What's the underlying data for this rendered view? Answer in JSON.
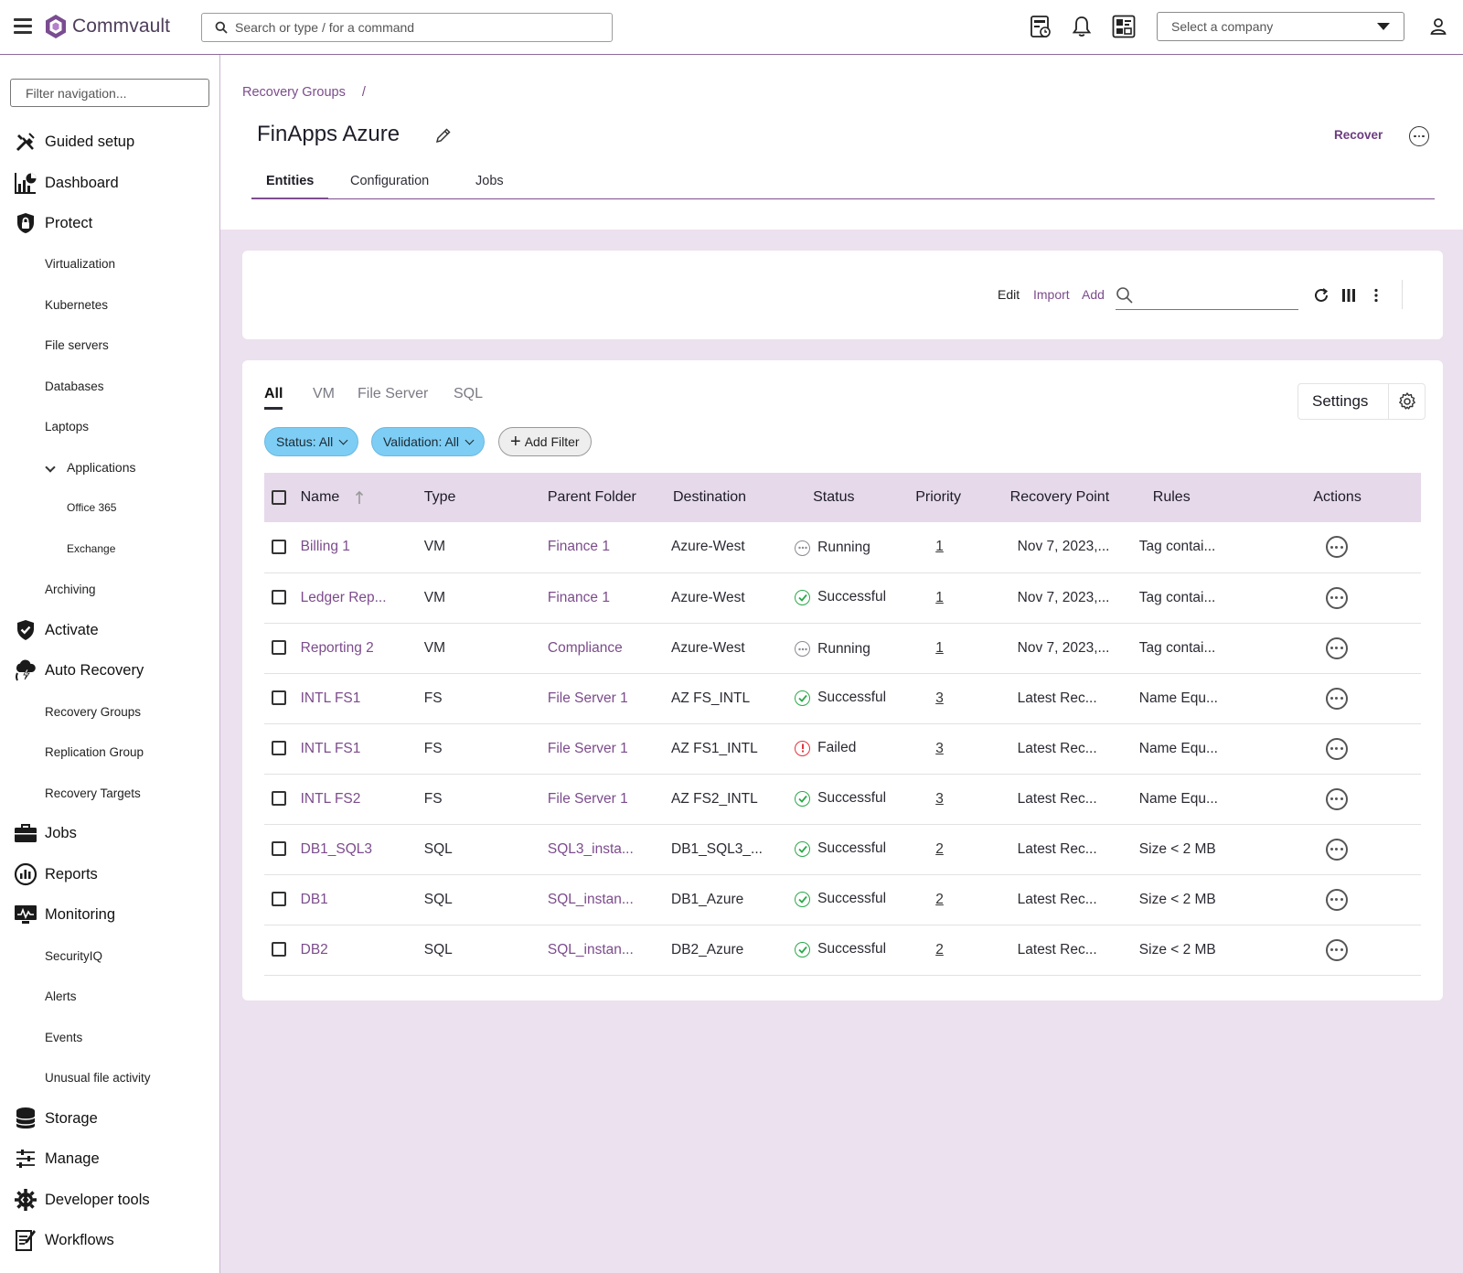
{
  "header": {
    "logo_text": "Commvault",
    "search_placeholder": "Search or type / for a command",
    "company_select": "Select a company",
    "icons": [
      "hamburger-menu-icon",
      "commvault-logo-icon",
      "search-icon",
      "job-monitor-icon",
      "bell-icon",
      "dashboard-widget-icon",
      "chevron-down-icon",
      "user-icon"
    ]
  },
  "sidebar": {
    "filter_placeholder": "Filter navigation...",
    "items": [
      {
        "label": "Guided setup",
        "icon": "tools-icon",
        "level": 0
      },
      {
        "label": "Dashboard",
        "icon": "chart-icon",
        "level": 0
      },
      {
        "label": "Protect",
        "icon": "lock-shield-icon",
        "level": 0
      },
      {
        "label": "Virtualization",
        "level": 1
      },
      {
        "label": "Kubernetes",
        "level": 1
      },
      {
        "label": "File servers",
        "level": 1
      },
      {
        "label": "Databases",
        "level": 1
      },
      {
        "label": "Laptops",
        "level": 1
      },
      {
        "label": "Applications",
        "level": 1,
        "expanded": true
      },
      {
        "label": "Office 365",
        "level": 2
      },
      {
        "label": "Exchange",
        "level": 2
      },
      {
        "label": "Archiving",
        "level": 1
      },
      {
        "label": "Activate",
        "icon": "shield-check-icon",
        "level": 0
      },
      {
        "label": "Auto Recovery",
        "icon": "cloud-recovery-icon",
        "level": 0
      },
      {
        "label": "Recovery Groups",
        "level": 1
      },
      {
        "label": "Replication Group",
        "level": 1
      },
      {
        "label": "Recovery Targets",
        "level": 1
      },
      {
        "label": "Jobs",
        "icon": "briefcase-icon",
        "level": 0
      },
      {
        "label": "Reports",
        "icon": "reports-icon",
        "level": 0
      },
      {
        "label": "Monitoring",
        "icon": "monitor-icon",
        "level": 0
      },
      {
        "label": "SecurityIQ",
        "level": 1
      },
      {
        "label": "Alerts",
        "level": 1
      },
      {
        "label": "Events",
        "level": 1
      },
      {
        "label": "Unusual file activity",
        "level": 1
      },
      {
        "label": "Storage",
        "icon": "database-icon",
        "level": 0
      },
      {
        "label": "Manage",
        "icon": "sliders-icon",
        "level": 0
      },
      {
        "label": "Developer tools",
        "icon": "gear-code-icon",
        "level": 0
      },
      {
        "label": "Workflows",
        "icon": "workflow-icon",
        "level": 0
      }
    ]
  },
  "page": {
    "breadcrumb": "Recovery Groups",
    "breadcrumb_sep": "/",
    "title": "FinApps Azure",
    "recover_label": "Recover",
    "tabs": [
      "Entities",
      "Configuration",
      "Jobs"
    ],
    "active_tab": "Entities"
  },
  "toolbar": {
    "edit": "Edit",
    "import": "Import",
    "add": "Add",
    "search_value": ""
  },
  "table_card": {
    "filter_tabs": [
      "All",
      "VM",
      "File Server",
      "SQL"
    ],
    "active_filter_tab": "All",
    "settings_label": "Settings",
    "chips": {
      "status": "Status: All",
      "validation": "Validation: All",
      "add_filter": "Add Filter"
    },
    "columns": [
      "Name",
      "Type",
      "Parent Folder",
      "Destination",
      "Status",
      "Priority",
      "Recovery Point",
      "Rules",
      "Actions"
    ],
    "sort_column": "Name",
    "status_colors": {
      "Running": "#8a8a93",
      "Successful": "#2ba84a",
      "Failed": "#e0333c"
    },
    "rows": [
      {
        "name": "Billing 1",
        "type": "VM",
        "parent": "Finance 1",
        "destination": "Azure-West",
        "status": "Running",
        "priority": "1",
        "recovery_point": "Nov 7, 2023,...",
        "rules": "Tag contai..."
      },
      {
        "name": "Ledger Rep...",
        "type": "VM",
        "parent": "Finance 1",
        "destination": "Azure-West",
        "status": "Successful",
        "priority": "1",
        "recovery_point": "Nov 7, 2023,...",
        "rules": "Tag contai..."
      },
      {
        "name": "Reporting 2",
        "type": "VM",
        "parent": "Compliance",
        "destination": "Azure-West",
        "status": "Running",
        "priority": "1",
        "recovery_point": "Nov 7, 2023,...",
        "rules": "Tag contai..."
      },
      {
        "name": "INTL FS1",
        "type": "FS",
        "parent": "File Server 1",
        "destination": "AZ FS_INTL",
        "status": "Successful",
        "priority": "3",
        "recovery_point": "Latest Rec...",
        "rules": "Name Equ..."
      },
      {
        "name": "INTL FS1",
        "type": "FS",
        "parent": "File Server 1",
        "destination": "AZ FS1_INTL",
        "status": "Failed",
        "priority": "3",
        "recovery_point": "Latest Rec...",
        "rules": "Name Equ..."
      },
      {
        "name": "INTL FS2",
        "type": "FS",
        "parent": "File Server 1",
        "destination": "AZ FS2_INTL",
        "status": "Successful",
        "priority": "3",
        "recovery_point": "Latest Rec...",
        "rules": "Name Equ..."
      },
      {
        "name": "DB1_SQL3",
        "type": "SQL",
        "parent": "SQL3_insta...",
        "destination": "DB1_SQL3_...",
        "status": "Successful",
        "priority": "2",
        "recovery_point": "Latest Rec...",
        "rules": "Size < 2 MB"
      },
      {
        "name": "DB1",
        "type": "SQL",
        "parent": "SQL_instan...",
        "destination": "DB1_Azure",
        "status": "Successful",
        "priority": "2",
        "recovery_point": "Latest Rec...",
        "rules": "Size < 2 MB"
      },
      {
        "name": "DB2",
        "type": "SQL",
        "parent": "SQL_instan...",
        "destination": "DB2_Azure",
        "status": "Successful",
        "priority": "2",
        "recovery_point": "Latest Rec...",
        "rules": "Size < 2 MB"
      }
    ]
  }
}
